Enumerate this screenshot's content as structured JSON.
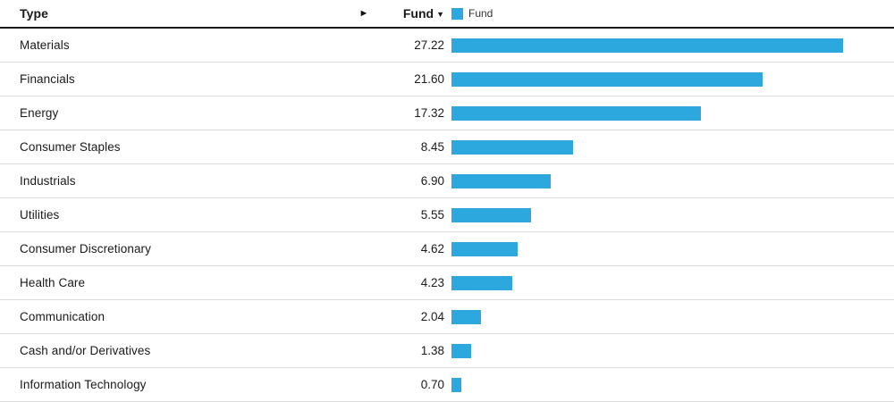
{
  "header": {
    "type_label": "Type",
    "scroll_arrow": "►",
    "fund_label": "Fund",
    "sort_indicator": "▼",
    "legend_label": "Fund"
  },
  "colors": {
    "bar": "#2CA8DF",
    "row_divider": "#dcdcdc",
    "header_divider": "#1a1a1a",
    "text": "#1a1a1a"
  },
  "chart_data": {
    "type": "bar",
    "orientation": "horizontal",
    "title": "",
    "series_name": "Fund",
    "categories": [
      "Materials",
      "Financials",
      "Energy",
      "Consumer Staples",
      "Industrials",
      "Utilities",
      "Consumer Discretionary",
      "Health Care",
      "Communication",
      "Cash and/or Derivatives",
      "Information Technology"
    ],
    "values": [
      27.22,
      21.6,
      17.32,
      8.45,
      6.9,
      5.55,
      4.62,
      4.23,
      2.04,
      1.38,
      0.7
    ],
    "value_format": "2-decimals",
    "xlim": [
      0,
      30
    ],
    "grid": false,
    "legend_position": "top-right-of-header",
    "bar_color": "#2CA8DF"
  }
}
